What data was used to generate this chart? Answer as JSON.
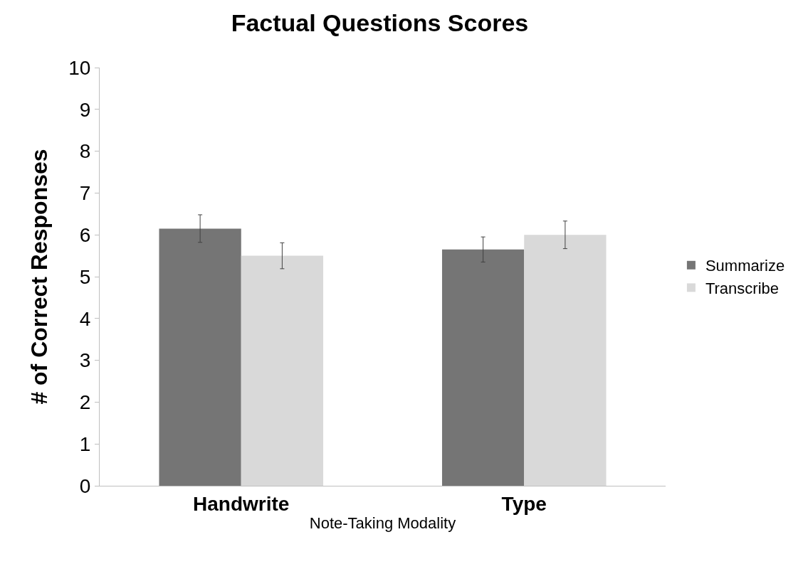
{
  "chart_data": {
    "type": "bar",
    "title": "Factual Questions Scores",
    "xlabel": "Note-Taking Modality",
    "ylabel": "# of Correct Responses",
    "categories": [
      "Handwrite",
      "Type"
    ],
    "series": [
      {
        "name": "Summarize",
        "color": "#757575",
        "values": [
          6.15,
          5.65
        ],
        "errors": [
          0.33,
          0.3
        ]
      },
      {
        "name": "Transcribe",
        "color": "#d9d9d9",
        "values": [
          5.5,
          6.0
        ],
        "errors": [
          0.31,
          0.33
        ]
      }
    ],
    "ylim": [
      0,
      10
    ],
    "yticks": [
      0,
      1,
      2,
      3,
      4,
      5,
      6,
      7,
      8,
      9,
      10
    ],
    "grid": false,
    "legend": "right"
  }
}
